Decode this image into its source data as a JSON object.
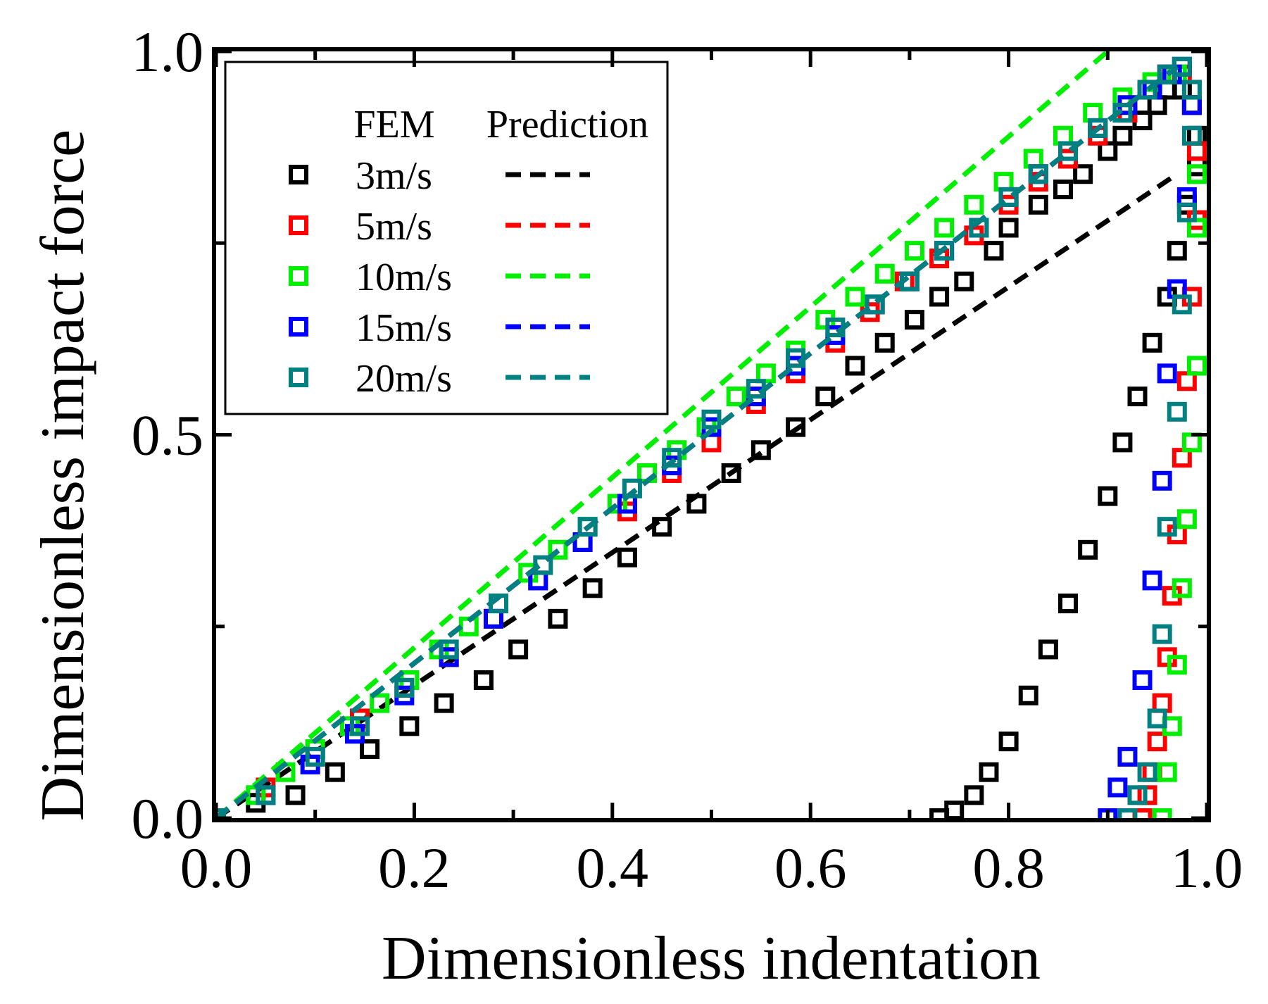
{
  "chart_data": {
    "type": "scatter",
    "title": "",
    "xlabel": "Dimensionless indentation",
    "ylabel": "Dimensionless impact force",
    "xlim": [
      0.0,
      1.0
    ],
    "ylim": [
      0.0,
      1.0
    ],
    "xticks": [
      "0.0",
      "0.2",
      "0.4",
      "0.6",
      "0.8",
      "1.0"
    ],
    "yticks": [
      "0.0",
      "0.5",
      "1.0"
    ],
    "grid": false,
    "legend": {
      "position": "top-left",
      "fem_header": "FEM",
      "prediction_header": "Prediction"
    },
    "series": [
      {
        "name": "3m/s",
        "color": "#000000",
        "prediction": {
          "x": [
            0.0,
            0.97
          ],
          "y": [
            0.0,
            0.84
          ]
        },
        "fem": {
          "x": [
            0.0,
            0.04,
            0.08,
            0.12,
            0.155,
            0.195,
            0.23,
            0.27,
            0.305,
            0.345,
            0.38,
            0.415,
            0.45,
            0.485,
            0.52,
            0.55,
            0.585,
            0.615,
            0.645,
            0.675,
            0.705,
            0.73,
            0.755,
            0.785,
            0.8,
            0.83,
            0.855,
            0.875,
            0.9,
            0.915,
            0.935,
            0.95,
            0.96,
            0.975,
            0.985,
            0.99,
            0.99,
            0.98,
            0.97,
            0.96,
            0.945,
            0.93,
            0.915,
            0.9,
            0.88,
            0.86,
            0.84,
            0.82,
            0.8,
            0.78,
            0.765,
            0.745,
            0.73
          ],
          "y": [
            0.0,
            0.02,
            0.03,
            0.06,
            0.09,
            0.12,
            0.15,
            0.18,
            0.22,
            0.26,
            0.3,
            0.34,
            0.38,
            0.41,
            0.45,
            0.48,
            0.51,
            0.55,
            0.59,
            0.62,
            0.65,
            0.68,
            0.7,
            0.74,
            0.77,
            0.8,
            0.82,
            0.84,
            0.87,
            0.89,
            0.91,
            0.93,
            0.95,
            0.95,
            0.93,
            0.89,
            0.85,
            0.8,
            0.74,
            0.68,
            0.62,
            0.55,
            0.49,
            0.42,
            0.35,
            0.28,
            0.22,
            0.16,
            0.1,
            0.06,
            0.03,
            0.01,
            0.0
          ]
        }
      },
      {
        "name": "5m/s",
        "color": "#ff0000",
        "prediction": {
          "x": [
            0.0,
            0.97
          ],
          "y": [
            0.0,
            0.98
          ]
        },
        "fem": {
          "x": [
            0.0,
            0.05,
            0.1,
            0.145,
            0.19,
            0.235,
            0.28,
            0.325,
            0.37,
            0.415,
            0.46,
            0.5,
            0.545,
            0.585,
            0.625,
            0.66,
            0.695,
            0.73,
            0.765,
            0.8,
            0.83,
            0.86,
            0.89,
            0.92,
            0.94,
            0.96,
            0.975,
            0.985,
            0.99,
            0.99,
            0.985,
            0.98,
            0.975,
            0.97,
            0.965,
            0.96,
            0.955,
            0.95,
            0.945,
            0.94,
            0.935
          ],
          "y": [
            0.0,
            0.04,
            0.09,
            0.13,
            0.17,
            0.21,
            0.26,
            0.31,
            0.36,
            0.4,
            0.45,
            0.49,
            0.54,
            0.58,
            0.62,
            0.66,
            0.7,
            0.73,
            0.76,
            0.8,
            0.83,
            0.86,
            0.89,
            0.92,
            0.95,
            0.97,
            0.97,
            0.93,
            0.87,
            0.78,
            0.68,
            0.57,
            0.47,
            0.37,
            0.29,
            0.21,
            0.15,
            0.1,
            0.06,
            0.03,
            0.0
          ]
        }
      },
      {
        "name": "10m/s",
        "color": "#00ee00",
        "prediction": {
          "x": [
            0.0,
            0.9
          ],
          "y": [
            0.0,
            1.0
          ]
        },
        "fem": {
          "x": [
            0.0,
            0.04,
            0.07,
            0.1,
            0.135,
            0.165,
            0.195,
            0.225,
            0.255,
            0.285,
            0.315,
            0.345,
            0.375,
            0.405,
            0.435,
            0.465,
            0.495,
            0.525,
            0.555,
            0.585,
            0.615,
            0.645,
            0.675,
            0.705,
            0.735,
            0.765,
            0.795,
            0.825,
            0.855,
            0.885,
            0.915,
            0.945,
            0.97,
            0.985,
            0.99,
            0.99,
            0.99,
            0.985,
            0.98,
            0.975,
            0.97,
            0.965,
            0.96,
            0.955
          ],
          "y": [
            0.0,
            0.03,
            0.06,
            0.09,
            0.12,
            0.15,
            0.18,
            0.22,
            0.25,
            0.28,
            0.32,
            0.35,
            0.38,
            0.41,
            0.45,
            0.48,
            0.51,
            0.55,
            0.58,
            0.61,
            0.65,
            0.68,
            0.71,
            0.74,
            0.77,
            0.8,
            0.83,
            0.86,
            0.89,
            0.92,
            0.94,
            0.96,
            0.97,
            0.95,
            0.84,
            0.77,
            0.59,
            0.49,
            0.39,
            0.3,
            0.2,
            0.12,
            0.06,
            0.0
          ]
        }
      },
      {
        "name": "15m/s",
        "color": "#0000ff",
        "prediction": {
          "x": [
            0.0,
            0.97
          ],
          "y": [
            0.0,
            0.98
          ]
        },
        "fem": {
          "x": [
            0.0,
            0.05,
            0.095,
            0.14,
            0.19,
            0.235,
            0.28,
            0.325,
            0.37,
            0.415,
            0.46,
            0.5,
            0.545,
            0.585,
            0.625,
            0.665,
            0.7,
            0.735,
            0.77,
            0.8,
            0.83,
            0.86,
            0.89,
            0.92,
            0.945,
            0.965,
            0.975,
            0.985,
            0.98,
            0.97,
            0.96,
            0.955,
            0.945,
            0.935,
            0.92,
            0.91,
            0.9
          ],
          "y": [
            0.0,
            0.03,
            0.07,
            0.11,
            0.16,
            0.21,
            0.26,
            0.31,
            0.36,
            0.41,
            0.46,
            0.51,
            0.55,
            0.59,
            0.63,
            0.67,
            0.7,
            0.74,
            0.77,
            0.81,
            0.84,
            0.87,
            0.9,
            0.93,
            0.95,
            0.97,
            0.98,
            0.93,
            0.81,
            0.69,
            0.58,
            0.44,
            0.31,
            0.18,
            0.08,
            0.04,
            0.0
          ]
        }
      },
      {
        "name": "20m/s",
        "color": "#008080",
        "prediction": {
          "x": [
            0.0,
            0.97
          ],
          "y": [
            0.0,
            0.98
          ]
        },
        "fem": {
          "x": [
            0.0,
            0.05,
            0.1,
            0.145,
            0.19,
            0.235,
            0.285,
            0.33,
            0.375,
            0.42,
            0.46,
            0.5,
            0.545,
            0.585,
            0.625,
            0.665,
            0.7,
            0.735,
            0.77,
            0.8,
            0.83,
            0.86,
            0.89,
            0.915,
            0.94,
            0.96,
            0.975,
            0.985,
            0.985,
            0.98,
            0.975,
            0.97,
            0.96,
            0.955,
            0.95,
            0.94,
            0.93,
            0.92
          ],
          "y": [
            0.0,
            0.03,
            0.08,
            0.12,
            0.17,
            0.22,
            0.28,
            0.33,
            0.38,
            0.43,
            0.47,
            0.52,
            0.56,
            0.6,
            0.64,
            0.67,
            0.7,
            0.74,
            0.77,
            0.81,
            0.84,
            0.87,
            0.9,
            0.92,
            0.95,
            0.97,
            0.98,
            0.95,
            0.89,
            0.79,
            0.67,
            0.53,
            0.38,
            0.24,
            0.13,
            0.06,
            0.03,
            0.0
          ]
        }
      }
    ]
  }
}
